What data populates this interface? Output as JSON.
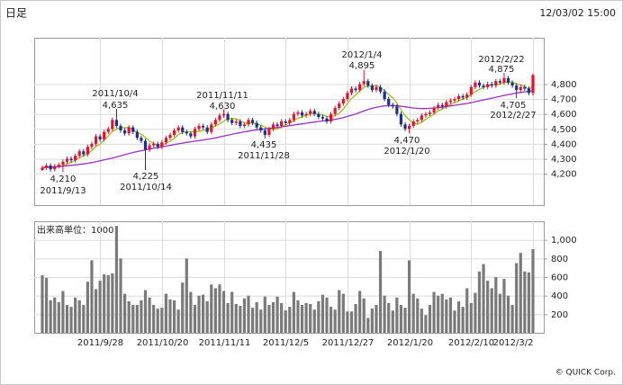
{
  "chart_data": [
    {
      "type": "candlestick",
      "title": "日足",
      "subtitle": "12/03/02 15:00",
      "up_color": "#e8102a",
      "down_color": "#1c2f8c",
      "grid": true,
      "ylim": [
        3990,
        5110
      ],
      "yticks": [
        {
          "value": 4200,
          "label": "4,200"
        },
        {
          "value": 4300,
          "label": "4,300"
        },
        {
          "value": 4400,
          "label": "4,400"
        },
        {
          "value": 4500,
          "label": "4,500"
        },
        {
          "value": 4600,
          "label": "4,600"
        },
        {
          "value": 4700,
          "label": "4,700"
        },
        {
          "value": 4800,
          "label": "4,800"
        }
      ],
      "open": [
        4225,
        4240,
        4255,
        4230,
        4250,
        4260,
        4280,
        4300,
        4290,
        4320,
        4350,
        4330,
        4380,
        4400,
        4450,
        4430,
        4480,
        4500,
        4560,
        4520,
        4490,
        4470,
        4510,
        4480,
        4440,
        4420,
        4360,
        4390,
        4400,
        4380,
        4410,
        4440,
        4460,
        4490,
        4510,
        4480,
        4470,
        4450,
        4500,
        4520,
        4510,
        4480,
        4530,
        4560,
        4590,
        4600,
        4560,
        4540,
        4550,
        4520,
        4530,
        4560,
        4540,
        4510,
        4490,
        4460,
        4500,
        4530,
        4520,
        4550,
        4540,
        4560,
        4600,
        4610,
        4590,
        4600,
        4620,
        4600,
        4580,
        4570,
        4550,
        4600,
        4640,
        4670,
        4700,
        4740,
        4770,
        4760,
        4800,
        4820,
        4790,
        4760,
        4780,
        4750,
        4700,
        4660,
        4650,
        4600,
        4530,
        4500,
        4520,
        4550,
        4560,
        4590,
        4600,
        4610,
        4640,
        4660,
        4650,
        4680,
        4690,
        4700,
        4720,
        4710,
        4730,
        4780,
        4810,
        4790,
        4780,
        4800,
        4790,
        4820,
        4810,
        4840,
        4810,
        4790,
        4760,
        4780,
        4770,
        4740
      ],
      "high": [
        4255,
        4270,
        4270,
        4265,
        4275,
        4295,
        4315,
        4315,
        4335,
        4365,
        4365,
        4395,
        4415,
        4465,
        4465,
        4495,
        4515,
        4575,
        4635,
        4535,
        4505,
        4525,
        4525,
        4495,
        4455,
        4435,
        4405,
        4415,
        4415,
        4425,
        4455,
        4475,
        4505,
        4525,
        4525,
        4495,
        4485,
        4515,
        4535,
        4535,
        4525,
        4545,
        4575,
        4605,
        4630,
        4615,
        4575,
        4565,
        4565,
        4545,
        4575,
        4575,
        4555,
        4525,
        4505,
        4515,
        4545,
        4545,
        4565,
        4565,
        4575,
        4615,
        4625,
        4625,
        4615,
        4635,
        4635,
        4615,
        4595,
        4585,
        4615,
        4655,
        4685,
        4715,
        4755,
        4785,
        4785,
        4815,
        4895,
        4835,
        4805,
        4795,
        4795,
        4765,
        4715,
        4675,
        4665,
        4615,
        4545,
        4535,
        4565,
        4575,
        4605,
        4615,
        4625,
        4655,
        4675,
        4675,
        4695,
        4705,
        4715,
        4735,
        4735,
        4745,
        4795,
        4825,
        4825,
        4805,
        4815,
        4815,
        4835,
        4835,
        4875,
        4855,
        4825,
        4805,
        4795,
        4795,
        4785,
        4870
      ],
      "low": [
        4218,
        4225,
        4215,
        4215,
        4235,
        4210,
        4265,
        4275,
        4275,
        4305,
        4315,
        4315,
        4365,
        4385,
        4415,
        4415,
        4465,
        4485,
        4505,
        4475,
        4455,
        4455,
        4465,
        4425,
        4405,
        4225,
        4345,
        4375,
        4365,
        4365,
        4395,
        4425,
        4445,
        4475,
        4465,
        4455,
        4435,
        4435,
        4485,
        4495,
        4465,
        4465,
        4515,
        4545,
        4575,
        4545,
        4525,
        4525,
        4505,
        4505,
        4515,
        4525,
        4495,
        4475,
        4435,
        4445,
        4485,
        4505,
        4505,
        4525,
        4525,
        4545,
        4585,
        4575,
        4575,
        4585,
        4585,
        4565,
        4555,
        4535,
        4535,
        4585,
        4625,
        4655,
        4685,
        4725,
        4745,
        4745,
        4785,
        4775,
        4745,
        4745,
        4735,
        4685,
        4645,
        4635,
        4585,
        4515,
        4485,
        4470,
        4505,
        4535,
        4545,
        4575,
        4585,
        4595,
        4625,
        4635,
        4635,
        4665,
        4675,
        4685,
        4695,
        4695,
        4715,
        4765,
        4775,
        4765,
        4765,
        4775,
        4775,
        4795,
        4795,
        4795,
        4775,
        4705,
        4745,
        4755,
        4725,
        4725
      ],
      "close": [
        4240,
        4255,
        4230,
        4250,
        4260,
        4280,
        4300,
        4290,
        4320,
        4350,
        4330,
        4380,
        4400,
        4450,
        4430,
        4480,
        4500,
        4560,
        4520,
        4490,
        4470,
        4510,
        4480,
        4440,
        4420,
        4360,
        4390,
        4400,
        4380,
        4410,
        4440,
        4460,
        4490,
        4510,
        4480,
        4470,
        4450,
        4500,
        4520,
        4510,
        4480,
        4530,
        4560,
        4590,
        4600,
        4560,
        4540,
        4550,
        4520,
        4530,
        4560,
        4540,
        4510,
        4490,
        4460,
        4500,
        4530,
        4520,
        4550,
        4540,
        4560,
        4600,
        4610,
        4590,
        4600,
        4620,
        4600,
        4580,
        4570,
        4550,
        4600,
        4640,
        4670,
        4700,
        4740,
        4770,
        4760,
        4800,
        4820,
        4790,
        4760,
        4780,
        4750,
        4700,
        4660,
        4650,
        4600,
        4530,
        4500,
        4520,
        4550,
        4560,
        4590,
        4600,
        4610,
        4640,
        4660,
        4650,
        4680,
        4690,
        4700,
        4720,
        4710,
        4730,
        4780,
        4810,
        4790,
        4780,
        4800,
        4790,
        4820,
        4810,
        4840,
        4810,
        4790,
        4760,
        4780,
        4770,
        4740,
        4860
      ],
      "lines": [
        {
          "color": "#9cc21c",
          "values": [
            4240,
            4248,
            4242,
            4244,
            4247,
            4255,
            4264,
            4276,
            4290,
            4308,
            4318,
            4334,
            4356,
            4382,
            4398,
            4428,
            4452,
            4484,
            4498,
            4510,
            4508,
            4510,
            4494,
            4478,
            4464,
            4442,
            4418,
            4402,
            4390,
            4388,
            4404,
            4418,
            4436,
            4462,
            4476,
            4482,
            4480,
            4482,
            4484,
            4490,
            4492,
            4508,
            4520,
            4534,
            4552,
            4568,
            4570,
            4568,
            4554,
            4540,
            4540,
            4540,
            4532,
            4526,
            4512,
            4500,
            4498,
            4500,
            4512,
            4528,
            4540,
            4554,
            4572,
            4580,
            4592,
            4604,
            4604,
            4598,
            4594,
            4584,
            4580,
            4588,
            4606,
            4632,
            4670,
            4704,
            4728,
            4754,
            4778,
            4788,
            4786,
            4790,
            4780,
            4756,
            4730,
            4708,
            4672,
            4628,
            4588,
            4560,
            4540,
            4532,
            4544,
            4564,
            4582,
            4600,
            4620,
            4632,
            4648,
            4664,
            4676,
            4688,
            4700,
            4710,
            4728,
            4750,
            4764,
            4778,
            4792,
            4794,
            4796,
            4800,
            4812,
            4814,
            4814,
            4802,
            4796,
            4782,
            4768,
            4782
          ]
        },
        {
          "color": "#9a30c8",
          "values": [
            4240,
            4242,
            4244,
            4246,
            4248,
            4250,
            4253,
            4256,
            4259,
            4262,
            4266,
            4270,
            4275,
            4280,
            4286,
            4292,
            4298,
            4305,
            4312,
            4320,
            4328,
            4335,
            4342,
            4348,
            4354,
            4360,
            4365,
            4370,
            4375,
            4380,
            4385,
            4390,
            4395,
            4400,
            4405,
            4410,
            4414,
            4418,
            4422,
            4426,
            4430,
            4435,
            4440,
            4446,
            4452,
            4458,
            4464,
            4470,
            4475,
            4480,
            4485,
            4490,
            4494,
            4498,
            4500,
            4503,
            4506,
            4510,
            4514,
            4518,
            4522,
            4526,
            4530,
            4534,
            4538,
            4542,
            4546,
            4550,
            4553,
            4556,
            4560,
            4564,
            4570,
            4576,
            4584,
            4592,
            4600,
            4610,
            4620,
            4630,
            4638,
            4645,
            4650,
            4654,
            4656,
            4656,
            4655,
            4652,
            4648,
            4644,
            4640,
            4638,
            4636,
            4636,
            4638,
            4640,
            4643,
            4646,
            4650,
            4654,
            4658,
            4662,
            4666,
            4670,
            4676,
            4682,
            4688,
            4694,
            4700,
            4706,
            4712,
            4718,
            4724,
            4730,
            4735,
            4740,
            4744,
            4748,
            4752,
            4756
          ]
        }
      ],
      "annotations": [
        {
          "date": "2011/9/13",
          "price": "4,210"
        },
        {
          "date": "2011/10/4",
          "price": "4,635"
        },
        {
          "date": "2011/10/14",
          "price": "4,225"
        },
        {
          "date": "2011/11/11",
          "price": "4,630"
        },
        {
          "date": "2011/11/28",
          "price": "4,435"
        },
        {
          "date": "2012/1/4",
          "price": "4,895"
        },
        {
          "date": "2012/1/20",
          "price": "4,470"
        },
        {
          "date": "2012/2/22",
          "price": "4,875"
        },
        {
          "date": "2012/2/27",
          "price": "4,705"
        }
      ]
    },
    {
      "type": "bar",
      "title": "出来高単位：1000",
      "color": "#7a7a7a",
      "grid": true,
      "credit": "© QUICK Corp.",
      "ylim": [
        0,
        1200
      ],
      "yticks": [
        200,
        400,
        600,
        800,
        {
          "value": 1000,
          "label": "1,000"
        }
      ],
      "categories": [
        null,
        null,
        null,
        null,
        null,
        null,
        null,
        null,
        null,
        null,
        null,
        null,
        null,
        null,
        "2011/9/28",
        null,
        null,
        null,
        null,
        null,
        null,
        null,
        null,
        null,
        null,
        null,
        null,
        null,
        null,
        "2011/10/20",
        null,
        null,
        null,
        null,
        null,
        null,
        null,
        null,
        null,
        null,
        null,
        null,
        null,
        null,
        "2011/11/11",
        null,
        null,
        null,
        null,
        null,
        null,
        null,
        null,
        null,
        null,
        null,
        null,
        null,
        null,
        "2011/12/5",
        null,
        null,
        null,
        null,
        null,
        null,
        null,
        null,
        null,
        null,
        null,
        null,
        null,
        null,
        "2011/12/27",
        null,
        null,
        null,
        null,
        null,
        null,
        null,
        null,
        null,
        null,
        null,
        null,
        null,
        null,
        "2012/1/20",
        null,
        null,
        null,
        null,
        null,
        null,
        null,
        null,
        null,
        null,
        null,
        null,
        null,
        null,
        "2012/2/10",
        null,
        null,
        null,
        null,
        null,
        null,
        null,
        null,
        null,
        null,
        null,
        null,
        null,
        null,
        "2012/3/2"
      ],
      "values": [
        620,
        590,
        350,
        380,
        330,
        450,
        300,
        280,
        380,
        350,
        300,
        550,
        780,
        470,
        560,
        630,
        620,
        640,
        1150,
        800,
        420,
        340,
        300,
        300,
        350,
        460,
        380,
        300,
        260,
        270,
        420,
        360,
        350,
        250,
        540,
        800,
        440,
        300,
        400,
        410,
        340,
        520,
        480,
        520,
        450,
        320,
        440,
        310,
        290,
        370,
        400,
        270,
        330,
        250,
        390,
        300,
        330,
        390,
        320,
        240,
        280,
        440,
        350,
        300,
        320,
        310,
        250,
        340,
        410,
        380,
        280,
        250,
        460,
        420,
        230,
        230,
        310,
        450,
        370,
        160,
        260,
        300,
        880,
        400,
        320,
        240,
        380,
        300,
        270,
        780,
        420,
        370,
        260,
        190,
        300,
        440,
        400,
        420,
        360,
        380,
        240,
        340,
        280,
        480,
        320,
        430,
        660,
        740,
        560,
        480,
        600,
        420,
        580,
        400,
        300,
        750,
        860,
        660,
        650,
        900
      ]
    }
  ]
}
